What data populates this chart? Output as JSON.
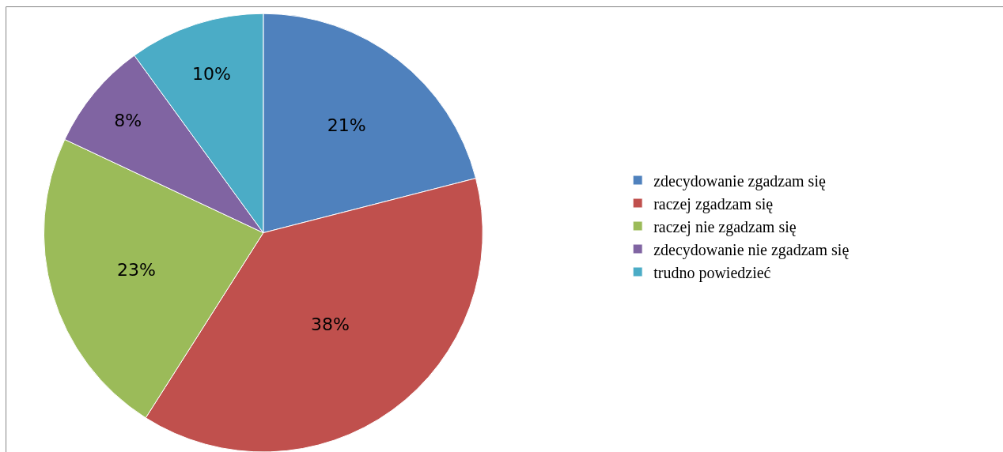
{
  "chart_data": {
    "type": "pie",
    "categories": [
      "zdecydowanie zgadzam się",
      "raczej zgadzam się",
      "raczej nie zgadzam się",
      "zdecydowanie nie zgadzam się",
      "trudno powiedzieć"
    ],
    "values": [
      21,
      38,
      23,
      8,
      10
    ],
    "colors": [
      "#4f81bd",
      "#c0504d",
      "#9bbb59",
      "#8064a2",
      "#4bacc6"
    ],
    "value_labels": [
      "21%",
      "38%",
      "23%",
      "8%",
      "10%"
    ],
    "legend": "right"
  }
}
